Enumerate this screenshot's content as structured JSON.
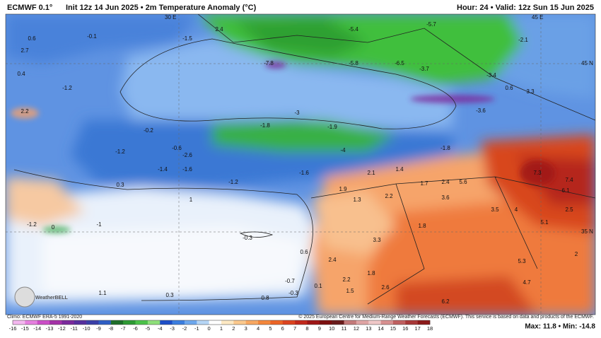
{
  "header": {
    "model": "ECMWF 0.1°",
    "init": "Init 12z 14 Jun 2025 • 2m Temperature Anomaly (°C)",
    "valid": "Hour: 24 • Valid: 12z Sun 15 Jun 2025"
  },
  "grid_labels": [
    "30 E",
    "45 E",
    "45 N",
    "35 N"
  ],
  "logo": "WeatherBELL",
  "map_labels": [
    0.6,
    -0.1,
    2.7,
    0.4,
    -1.2,
    2.2,
    -1.5,
    2.4,
    -5.4,
    -5.7,
    -2.1,
    -7.8,
    -5.8,
    -6.5,
    -3.7,
    -3.4,
    0.6,
    3.3,
    -3.0,
    -3.6,
    -1.8,
    -1.9,
    -0.2,
    -0.6,
    -2.6,
    -4.0,
    -1.8,
    -1.2,
    -1.4,
    -1.6,
    -1.6,
    2.1,
    1.4,
    1.7,
    2.4,
    5.6,
    7.3,
    7.4,
    6.1,
    -1.2,
    0.3,
    1.9,
    2.2,
    1.3,
    3.6,
    3.5,
    4.0,
    2.5,
    5.1,
    1.8,
    1.0,
    -1.2,
    -0.0,
    -1.0,
    -0.3,
    3.3,
    0.6,
    2.4,
    2.0,
    5.3,
    1.8,
    2.2,
    4.7,
    1.5,
    2.6,
    6.2,
    1.1,
    0.3,
    -0.3,
    0.8,
    -0.7,
    0.1
  ],
  "footer": {
    "climo": "Climo: ECMWF ERA-5 1991-2020",
    "copyright": "© 2025 European Centre for Medium-Range Weather Forecasts (ECMWF). This service is based on data and products of the ECMWF.",
    "maxmin": "Max: 11.8 • Min: -14.8"
  },
  "colorbar": {
    "labels": [
      -16,
      -15,
      -14,
      -13,
      -12,
      -11,
      -10,
      -9,
      -8,
      -7,
      -6,
      -5,
      -4,
      -3,
      -2,
      -1,
      0,
      1,
      2,
      3,
      4,
      5,
      6,
      7,
      8,
      9,
      10,
      11,
      12,
      13,
      14,
      15,
      16,
      17,
      18
    ],
    "colors": [
      "#f4b8f0",
      "#e680e0",
      "#cc4fc8",
      "#a532a8",
      "#7b2a9c",
      "#57309e",
      "#3b3fa8",
      "#2f5fc4",
      "#1e6e2a",
      "#2e9a34",
      "#4cc24a",
      "#8fe07a",
      "#1e4fc8",
      "#3c7ee0",
      "#6ea8ee",
      "#b6d6f6",
      "#ffffff",
      "#fde9c4",
      "#fbc98e",
      "#f8a862",
      "#f4873c",
      "#ec6426",
      "#dc4420",
      "#c2291c",
      "#9e1616",
      "#7c1010",
      "#6a1c1c",
      "#c47a7a",
      "#e0a4a4",
      "#f0c8c8",
      "#d89090",
      "#c06060",
      "#a83838",
      "#8c1a1a"
    ]
  }
}
